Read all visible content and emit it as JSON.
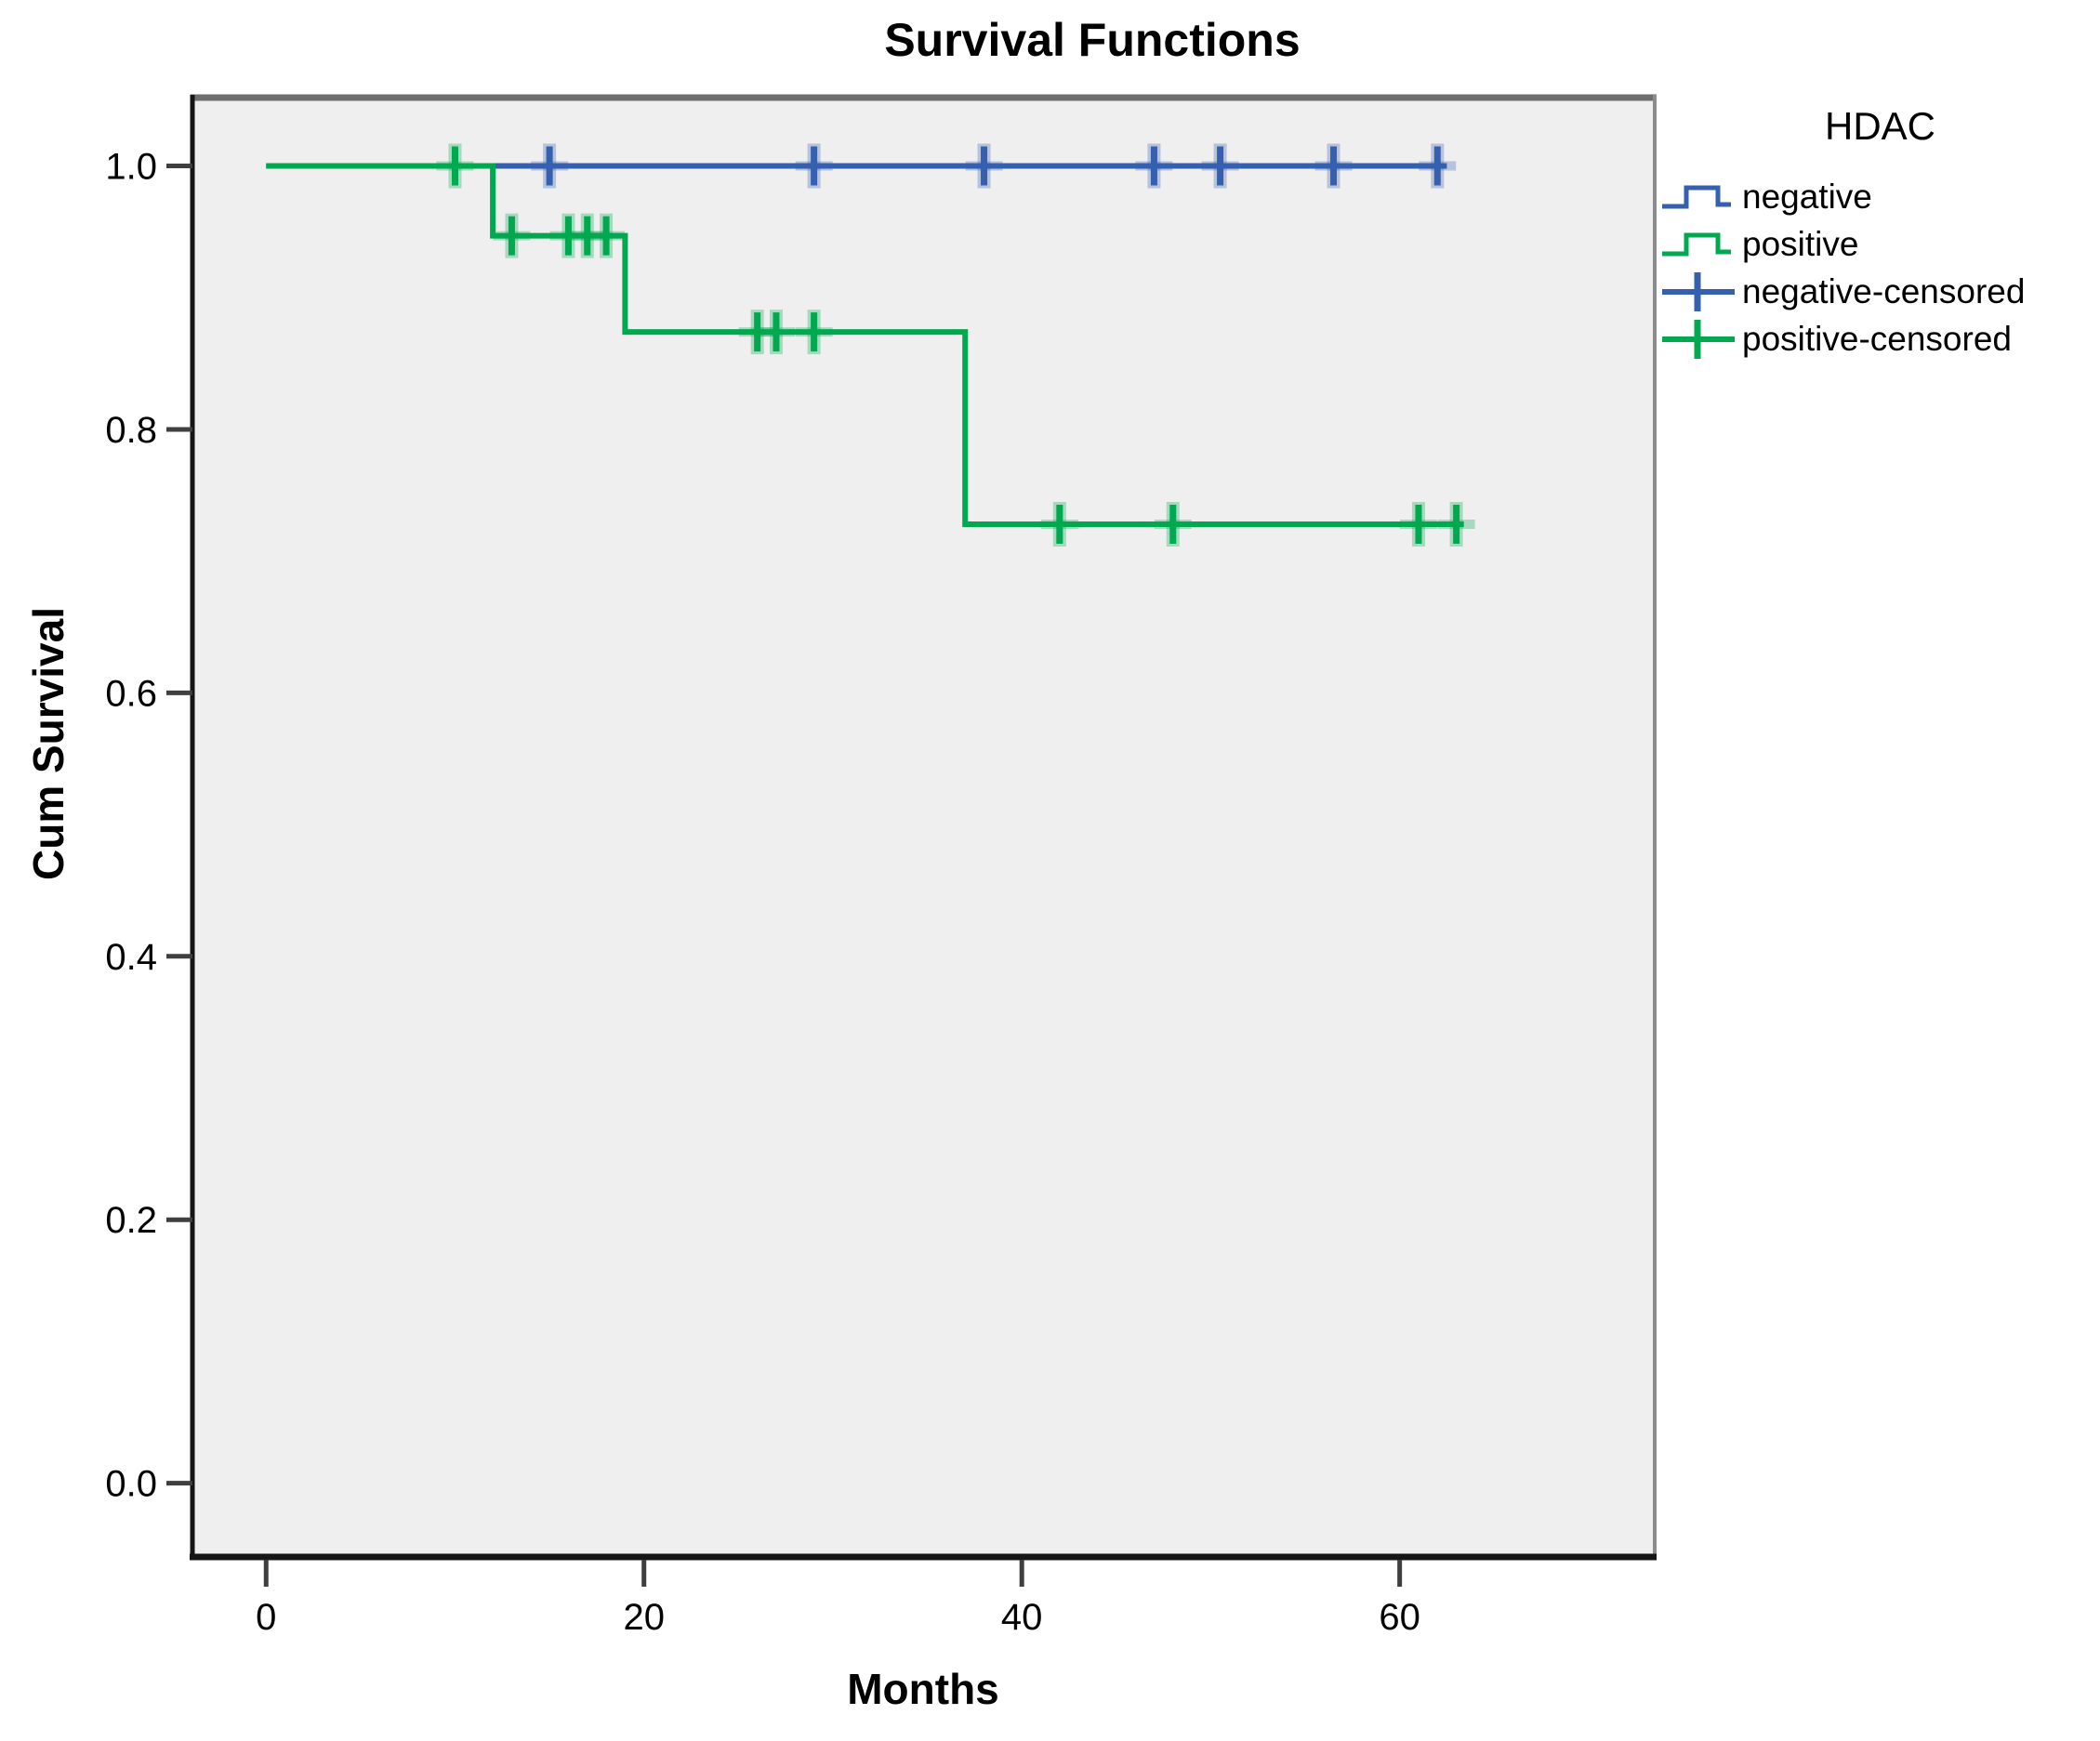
{
  "title": "Survival Functions",
  "axes": {
    "x": {
      "label": "Months",
      "ticks": [
        0,
        20,
        40,
        60
      ]
    },
    "y": {
      "label": "Cum Survival",
      "ticks": [
        "0.0",
        "0.2",
        "0.4",
        "0.6",
        "0.8",
        "1.0"
      ]
    }
  },
  "legend": {
    "title": "HDAC",
    "entries": [
      {
        "label": "negative",
        "glyph": "step-line",
        "color": "#3560b0"
      },
      {
        "label": "positive",
        "glyph": "step-line",
        "color": "#00a84f"
      },
      {
        "label": "negative-censored",
        "glyph": "plus-cross",
        "color": "#3560b0"
      },
      {
        "label": "positive-censored",
        "glyph": "plus-cross",
        "color": "#00a84f"
      }
    ]
  },
  "colors": {
    "negative": "#3560b0",
    "positive": "#00a84f",
    "plot_background": "#efefef",
    "frame_top": "#6e6e6e",
    "frame_right": "#8c8c8c",
    "frame_dark": "#151515",
    "tick": "#3f3f3f",
    "text": "#000000"
  },
  "chart_data": {
    "type": "line",
    "subtype": "kaplan-meier-step",
    "title": "Survival Functions",
    "xlabel": "Months",
    "ylabel": "Cum Survival",
    "xlim": [
      -3.9,
      73.5
    ],
    "ylim": [
      -0.056,
      1.054
    ],
    "x_ticks": [
      0,
      20,
      40,
      60
    ],
    "y_ticks": [
      0.0,
      0.2,
      0.4,
      0.6,
      0.8,
      1.0
    ],
    "grid": false,
    "legend_position": "right",
    "series": [
      {
        "name": "negative",
        "color": "#3560b0",
        "steps": [
          {
            "x": 0,
            "y": 1.0
          },
          {
            "x": 62.5,
            "y": 1.0
          }
        ],
        "censored": [
          {
            "x": 15,
            "y": 1.0
          },
          {
            "x": 29,
            "y": 1.0
          },
          {
            "x": 38,
            "y": 1.0
          },
          {
            "x": 47,
            "y": 1.0
          },
          {
            "x": 50.5,
            "y": 1.0
          },
          {
            "x": 56.5,
            "y": 1.0
          },
          {
            "x": 62,
            "y": 1.0
          }
        ]
      },
      {
        "name": "positive",
        "color": "#00a84f",
        "steps": [
          {
            "x": 0,
            "y": 1.0
          },
          {
            "x": 12,
            "y": 1.0
          },
          {
            "x": 12,
            "y": 0.947
          },
          {
            "x": 19,
            "y": 0.947
          },
          {
            "x": 19,
            "y": 0.874
          },
          {
            "x": 37,
            "y": 0.874
          },
          {
            "x": 37,
            "y": 0.728
          },
          {
            "x": 63.4,
            "y": 0.728
          }
        ],
        "censored": [
          {
            "x": 10,
            "y": 1.0
          },
          {
            "x": 13,
            "y": 0.947
          },
          {
            "x": 16,
            "y": 0.947
          },
          {
            "x": 17,
            "y": 0.947
          },
          {
            "x": 18,
            "y": 0.947
          },
          {
            "x": 26,
            "y": 0.874
          },
          {
            "x": 27,
            "y": 0.874
          },
          {
            "x": 29,
            "y": 0.874
          },
          {
            "x": 42,
            "y": 0.728
          },
          {
            "x": 48,
            "y": 0.728
          },
          {
            "x": 61,
            "y": 0.728
          },
          {
            "x": 63,
            "y": 0.728
          }
        ]
      }
    ]
  }
}
